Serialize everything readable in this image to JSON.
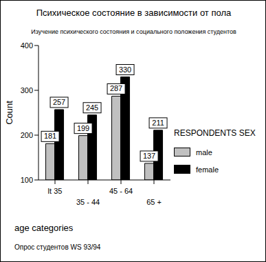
{
  "chart_data": {
    "type": "bar",
    "title": "Психическое состояние в зависимости от пола",
    "subtitle": "Изучение психического состояния и социального положения студентов",
    "x_label": "age categories",
    "y_label": "Count",
    "legend_title": "RESPONDENTS SEX",
    "caption": "Опрос студентов WS 93/94",
    "categories": [
      "lt 35",
      "35 - 44",
      "45 - 64",
      "65 +"
    ],
    "series": [
      {
        "name": "male",
        "color": "#c0c0c0",
        "values": [
          181,
          199,
          287,
          137
        ]
      },
      {
        "name": "female",
        "color": "#000000",
        "values": [
          257,
          245,
          330,
          211
        ]
      }
    ],
    "ylim": [
      100,
      400
    ],
    "yticks": [
      100,
      200,
      300,
      400
    ],
    "grid": false,
    "legend": "right",
    "data_labels": true
  }
}
